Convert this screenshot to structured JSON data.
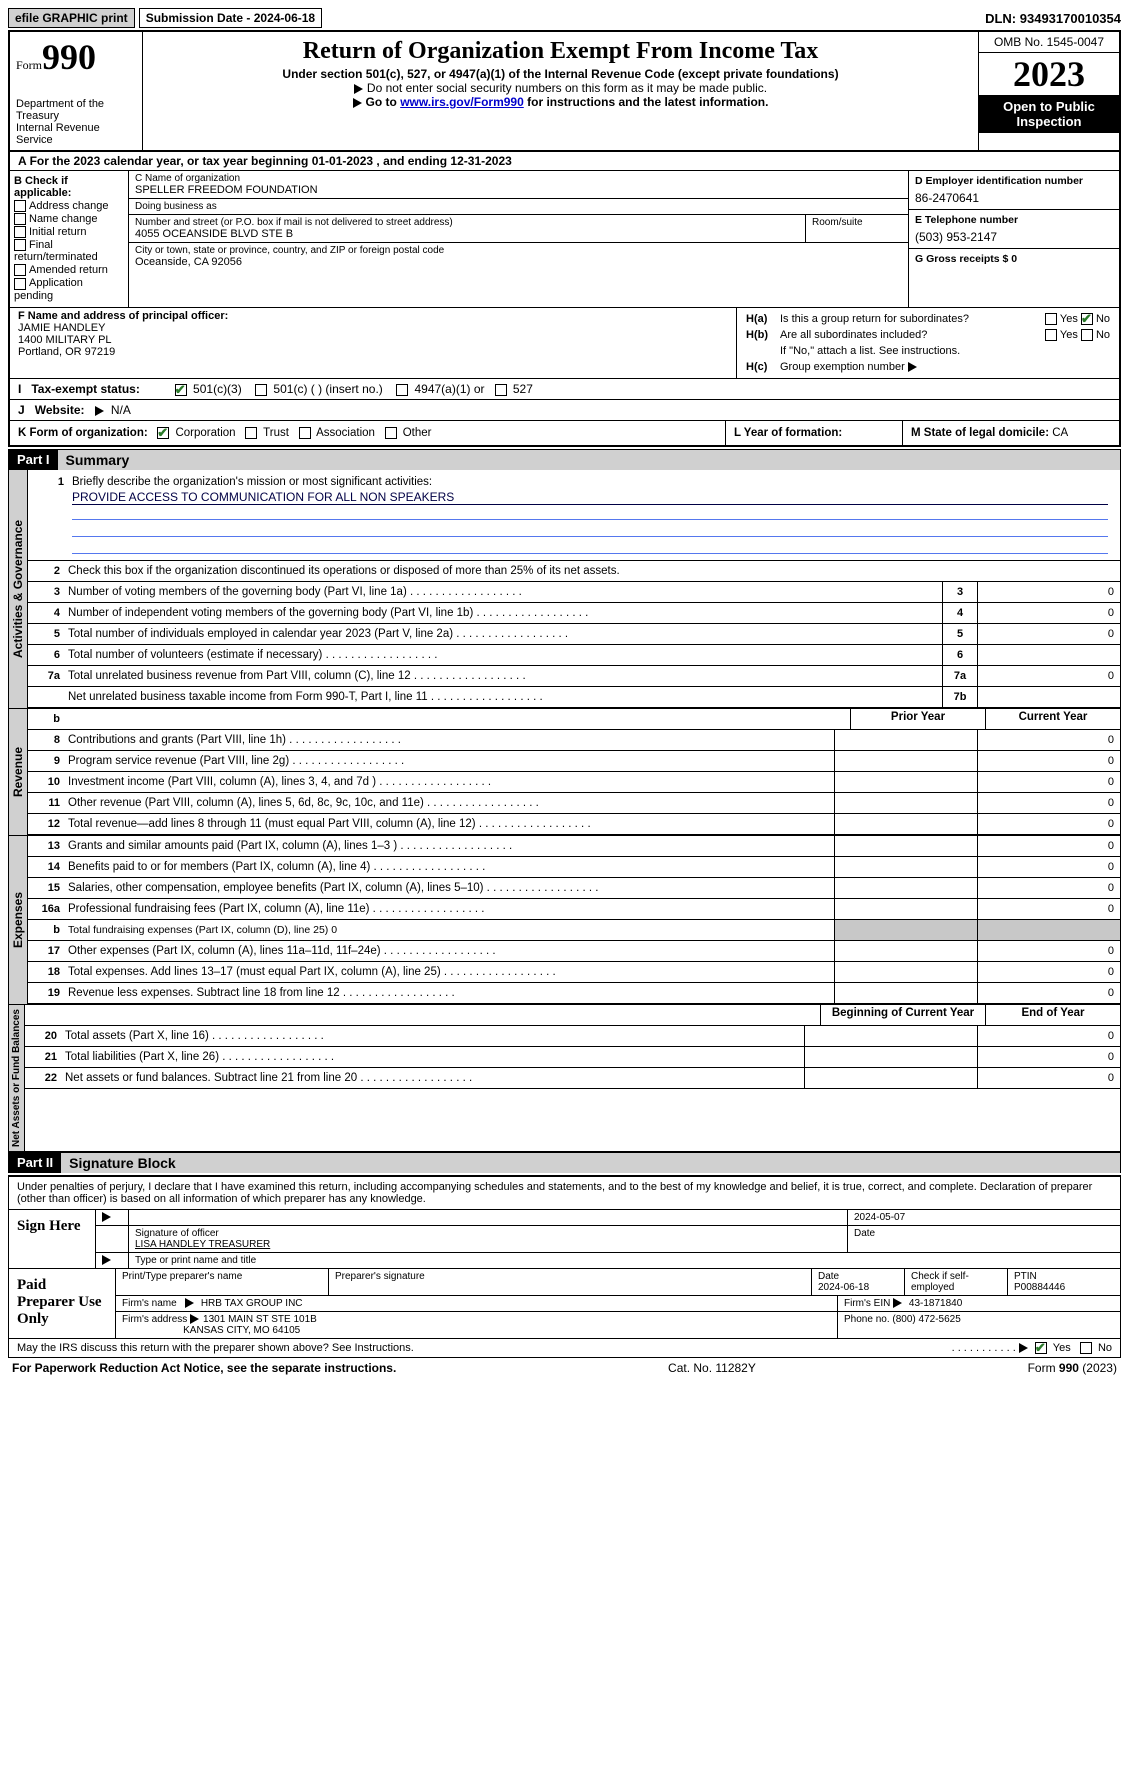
{
  "topbar": {
    "efile": "efile GRAPHIC print",
    "submission_label": "Submission Date - ",
    "submission_date": "2024-06-18",
    "dln_label": "DLN: ",
    "dln": "93493170010354"
  },
  "header": {
    "form_prefix": "Form",
    "form_number": "990",
    "dept": "Department of the Treasury\nInternal Revenue Service",
    "title": "Return of Organization Exempt From Income Tax",
    "sub1": "Under section 501(c), 527, or 4947(a)(1) of the Internal Revenue Code (except private foundations)",
    "sub2": "Do not enter social security numbers on this form as it may be made public.",
    "sub3_pre": "Go to ",
    "sub3_link": "www.irs.gov/Form990",
    "sub3_post": " for instructions and the latest information.",
    "omb": "OMB No. 1545-0047",
    "year": "2023",
    "open": "Open to Public Inspection"
  },
  "lineA": {
    "text_pre": "For the 2023 calendar year, or tax year beginning ",
    "begin": "01-01-2023",
    "mid": "   , and ending ",
    "end": "12-31-2023"
  },
  "boxB": {
    "header": "B Check if applicable:",
    "items": [
      "Address change",
      "Name change",
      "Initial return",
      "Final return/terminated",
      "Amended return",
      "Application pending"
    ]
  },
  "boxC": {
    "name_lbl": "C Name of organization",
    "name": "SPELLER FREEDOM FOUNDATION",
    "dba_lbl": "Doing business as",
    "dba": "",
    "street_lbl": "Number and street (or P.O. box if mail is not delivered to street address)",
    "street": "4055 OCEANSIDE BLVD STE B",
    "room_lbl": "Room/suite",
    "city_lbl": "City or town, state or province, country, and ZIP or foreign postal code",
    "city": "Oceanside, CA  92056"
  },
  "boxD": {
    "lbl": "D Employer identification number",
    "val": "86-2470641"
  },
  "boxE": {
    "lbl": "E Telephone number",
    "val": "(503) 953-2147"
  },
  "boxG": {
    "lbl": "G Gross receipts $ 0"
  },
  "boxF": {
    "lbl": "F  Name and address of principal officer:",
    "name": "JAMIE HANDLEY",
    "street": "1400 MILITARY PL",
    "city": "Portland, OR  97219"
  },
  "boxH": {
    "a_lbl": "H(a)",
    "a_txt": "Is this a group return for subordinates?",
    "b_lbl": "H(b)",
    "b_txt": "Are all subordinates included?",
    "b_note": "If \"No,\" attach a list. See instructions.",
    "c_lbl": "H(c)",
    "c_txt": "Group exemption number",
    "yes": "Yes",
    "no": "No"
  },
  "rowI": {
    "lbl": "Tax-exempt status:",
    "opt1": "501(c)(3)",
    "opt2": "501(c) (   ) (insert no.)",
    "opt3": "4947(a)(1) or",
    "opt4": "527"
  },
  "rowJ": {
    "lbl": "Website:",
    "arrow": "▶",
    "val": "N/A"
  },
  "rowK": {
    "k_lbl": "K Form of organization:",
    "opts": [
      "Corporation",
      "Trust",
      "Association",
      "Other"
    ],
    "l_lbl": "L Year of formation:",
    "m_lbl": "M State of legal domicile: ",
    "m_val": "CA"
  },
  "partI": {
    "tag": "Part I",
    "title": "Summary",
    "line1_lbl": "1",
    "line1_txt": "Briefly describe the organization's mission or most significant activities:",
    "line1_val": "PROVIDE ACCESS TO COMMUNICATION FOR ALL NON SPEAKERS",
    "line2_lbl": "2",
    "line2_txt": "Check this box       if the organization discontinued its operations or disposed of more than 25% of its net assets.",
    "vlabels": {
      "gov": "Activities & Governance",
      "rev": "Revenue",
      "exp": "Expenses",
      "net": "Net Assets or Fund Balances"
    },
    "col_headers": {
      "prior": "Prior Year",
      "current": "Current Year",
      "begin": "Beginning of Current Year",
      "end": "End of Year"
    },
    "gov_lines": [
      {
        "n": "3",
        "t": "Number of voting members of the governing body (Part VI, line 1a)",
        "box": "3",
        "v": "0"
      },
      {
        "n": "4",
        "t": "Number of independent voting members of the governing body (Part VI, line 1b)",
        "box": "4",
        "v": "0"
      },
      {
        "n": "5",
        "t": "Total number of individuals employed in calendar year 2023 (Part V, line 2a)",
        "box": "5",
        "v": "0"
      },
      {
        "n": "6",
        "t": "Total number of volunteers (estimate if necessary)",
        "box": "6",
        "v": ""
      },
      {
        "n": "7a",
        "t": "Total unrelated business revenue from Part VIII, column (C), line 12",
        "box": "7a",
        "v": "0"
      },
      {
        "n": "",
        "t": "Net unrelated business taxable income from Form 990-T, Part I, line 11",
        "box": "7b",
        "v": ""
      }
    ],
    "rev_lines": [
      {
        "n": "8",
        "t": "Contributions and grants (Part VIII, line 1h)",
        "p": "",
        "c": "0"
      },
      {
        "n": "9",
        "t": "Program service revenue (Part VIII, line 2g)",
        "p": "",
        "c": "0"
      },
      {
        "n": "10",
        "t": "Investment income (Part VIII, column (A), lines 3, 4, and 7d )",
        "p": "",
        "c": "0"
      },
      {
        "n": "11",
        "t": "Other revenue (Part VIII, column (A), lines 5, 6d, 8c, 9c, 10c, and 11e)",
        "p": "",
        "c": "0"
      },
      {
        "n": "12",
        "t": "Total revenue—add lines 8 through 11 (must equal Part VIII, column (A), line 12)",
        "p": "",
        "c": "0"
      }
    ],
    "exp_lines": [
      {
        "n": "13",
        "t": "Grants and similar amounts paid (Part IX, column (A), lines 1–3 )",
        "p": "",
        "c": "0"
      },
      {
        "n": "14",
        "t": "Benefits paid to or for members (Part IX, column (A), line 4)",
        "p": "",
        "c": "0"
      },
      {
        "n": "15",
        "t": "Salaries, other compensation, employee benefits (Part IX, column (A), lines 5–10)",
        "p": "",
        "c": "0"
      },
      {
        "n": "16a",
        "t": "Professional fundraising fees (Part IX, column (A), line 11e)",
        "p": "",
        "c": "0"
      },
      {
        "n": "b",
        "t": "Total fundraising expenses (Part IX, column (D), line 25) 0",
        "shade": true
      },
      {
        "n": "17",
        "t": "Other expenses (Part IX, column (A), lines 11a–11d, 11f–24e)",
        "p": "",
        "c": "0"
      },
      {
        "n": "18",
        "t": "Total expenses. Add lines 13–17 (must equal Part IX, column (A), line 25)",
        "p": "",
        "c": "0"
      },
      {
        "n": "19",
        "t": "Revenue less expenses. Subtract line 18 from line 12",
        "p": "",
        "c": "0"
      }
    ],
    "net_lines": [
      {
        "n": "20",
        "t": "Total assets (Part X, line 16)",
        "p": "",
        "c": "0"
      },
      {
        "n": "21",
        "t": "Total liabilities (Part X, line 26)",
        "p": "",
        "c": "0"
      },
      {
        "n": "22",
        "t": "Net assets or fund balances. Subtract line 21 from line 20",
        "p": "",
        "c": "0"
      }
    ]
  },
  "partII": {
    "tag": "Part II",
    "title": "Signature Block",
    "declaration": "Under penalties of perjury, I declare that I have examined this return, including accompanying schedules and statements, and to the best of my knowledge and belief, it is true, correct, and complete. Declaration of preparer (other than officer) is based on all information of which preparer has any knowledge.",
    "sign_here": "Sign Here",
    "sig_officer_lbl": "Signature of officer",
    "officer_name": "LISA HANDLEY TREASURER",
    "sig_date": "2024-05-07",
    "type_lbl": "Type or print name and title",
    "date_lbl": "Date",
    "paid": "Paid Preparer Use Only",
    "prep_name_lbl": "Print/Type preparer's name",
    "prep_sig_lbl": "Preparer's signature",
    "prep_date_lbl": "Date",
    "prep_date": "2024-06-18",
    "self_emp": "Check        if self-employed",
    "ptin_lbl": "PTIN",
    "ptin": "P00884446",
    "firm_name_lbl": "Firm's name",
    "firm_name": "HRB TAX GROUP INC",
    "firm_ein_lbl": "Firm's EIN",
    "firm_ein": "43-1871840",
    "firm_addr_lbl": "Firm's address",
    "firm_addr1": "1301 MAIN ST STE 101B",
    "firm_addr2": "KANSAS CITY, MO  64105",
    "phone_lbl": "Phone no.",
    "phone": "(800) 472-5625",
    "discuss": "May the IRS discuss this return with the preparer shown above? See Instructions.",
    "yes": "Yes",
    "no": "No"
  },
  "footer": {
    "left": "For Paperwork Reduction Act Notice, see the separate instructions.",
    "cat": "Cat. No. 11282Y",
    "right_pre": "Form ",
    "right_form": "990",
    "right_post": " (2023)"
  }
}
